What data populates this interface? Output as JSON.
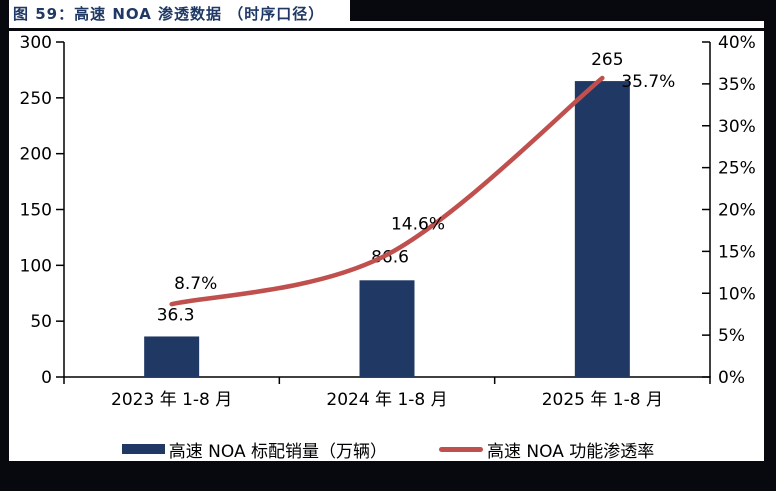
{
  "figure": {
    "title": "图 59：高速 NOA 渗透数据 （时序口径）"
  },
  "colors": {
    "bar_navy": "#1f3864",
    "line_red": "#c0504d",
    "frame_dark": "#07090f",
    "title_navy": "#1f3864",
    "axis_black": "#000000"
  },
  "legend": [
    {
      "label": "高速 NOA 标配销量（万辆）",
      "swatch": "bar"
    },
    {
      "label": "高速 NOA 功能渗透率",
      "swatch": "line"
    }
  ],
  "chart_data": {
    "type": "combo",
    "title": "图 59：高速 NOA 渗透数据 （时序口径）",
    "categories": [
      "2023 年 1-8 月",
      "2024 年 1-8 月",
      "2025 年 1-8 月"
    ],
    "series": [
      {
        "name": "高速 NOA 标配销量（万辆）",
        "type": "bar",
        "axis": "left",
        "color": "#1f3864",
        "values": [
          36.3,
          86.6,
          265
        ],
        "labels": [
          "36.3",
          "86.6",
          "265"
        ]
      },
      {
        "name": "高速 NOA 功能渗透率",
        "type": "line",
        "axis": "right",
        "color": "#c0504d",
        "values": [
          8.7,
          14.6,
          35.7
        ],
        "labels": [
          "8.7%",
          "14.6%",
          "35.7%"
        ]
      }
    ],
    "left_axis": {
      "min": 0,
      "max": 300,
      "ticks": [
        "300",
        "250",
        "200",
        "150",
        "100",
        "50",
        "0"
      ]
    },
    "right_axis": {
      "min": 0,
      "max": 40,
      "ticks": [
        "40%",
        "35%",
        "30%",
        "25%",
        "20%",
        "15%",
        "10%",
        "5%",
        "0%"
      ]
    },
    "grid": false,
    "legend_position": "bottom"
  }
}
